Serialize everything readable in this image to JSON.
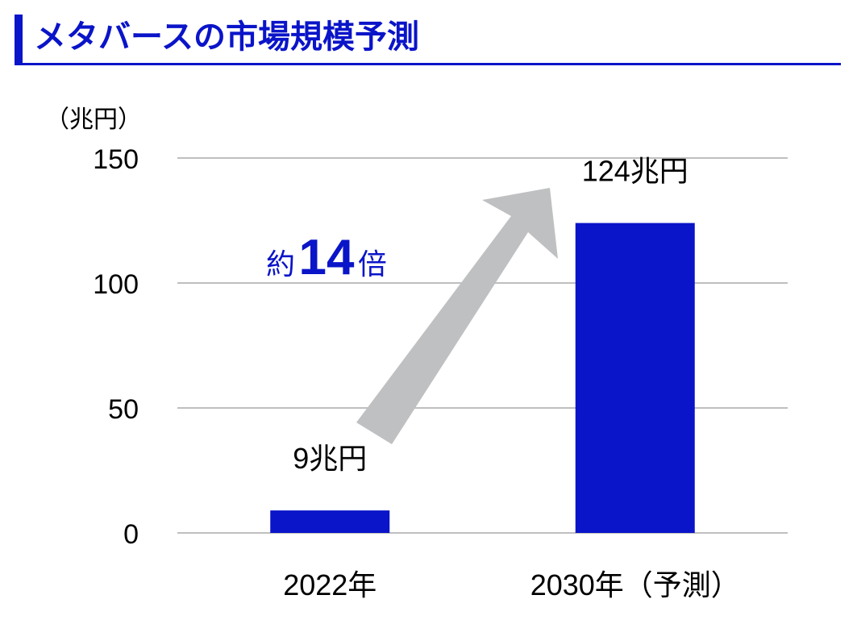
{
  "header": {
    "title": "メタバースの市場規模予測"
  },
  "colors": {
    "accent": "#0a14c8",
    "bar": "#0a14c8",
    "arrow": "#bfc0c2",
    "grid": "#bfbfbf",
    "text": "#000000"
  },
  "annotation": {
    "prefix": "約",
    "number": "14",
    "suffix": "倍",
    "icon": "up-right-arrow-icon"
  },
  "chart_data": {
    "type": "bar",
    "unit_label": "（兆円）",
    "categories": [
      "2022年",
      "2030年（予測）"
    ],
    "values": [
      9,
      124
    ],
    "data_labels": [
      "9兆円",
      "124兆円"
    ],
    "ylim": [
      0,
      150
    ],
    "yticks": [
      0,
      50,
      100,
      150
    ],
    "grid": true,
    "legend": "none"
  }
}
